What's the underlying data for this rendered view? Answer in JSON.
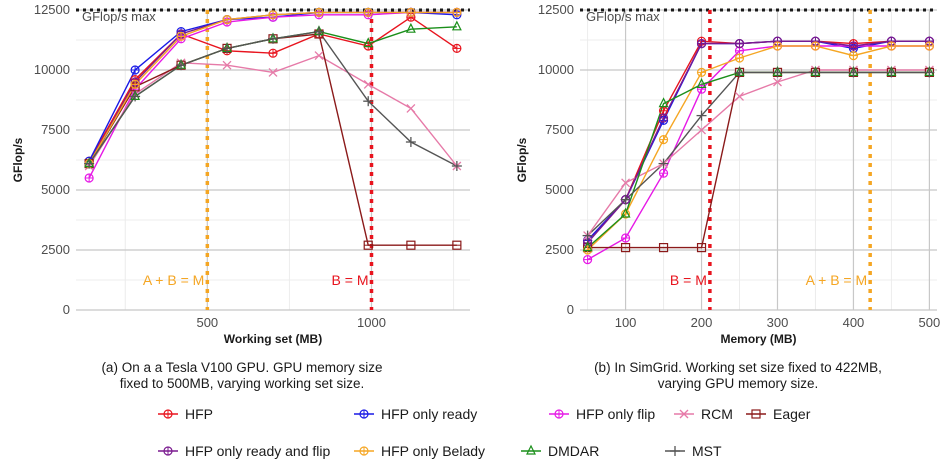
{
  "chart_data": [
    {
      "type": "line",
      "xlabel": "Working set (MB)",
      "ylabel": "GFlop/s",
      "xlim": [
        100,
        1300
      ],
      "ylim": [
        0,
        12500
      ],
      "xticks": [
        500,
        1000
      ],
      "yticks": [
        0,
        2500,
        5000,
        7500,
        10000,
        12500
      ],
      "grid": true,
      "max_line": {
        "y": 12500,
        "label": "GFlop/s max"
      },
      "vlines": [
        {
          "x": 500,
          "label": "A + B = M",
          "color": "#f5a623"
        },
        {
          "x": 1000,
          "label": "B = M",
          "color": "#e8141e"
        }
      ],
      "caption": "(a) On a a Tesla V100 GPU. GPU memory size fixed to 500MB, varying working set size.",
      "x": [
        140,
        280,
        420,
        560,
        700,
        840,
        990,
        1120,
        1260
      ],
      "series": [
        {
          "name": "HFP",
          "values": [
            6200,
            9600,
            11500,
            10800,
            10700,
            11500,
            11000,
            12200,
            10900
          ]
        },
        {
          "name": "HFP only ready",
          "values": [
            6200,
            10000,
            11600,
            12100,
            12200,
            12400,
            12400,
            12400,
            12300
          ]
        },
        {
          "name": "HFP only flip",
          "values": [
            5500,
            9200,
            11300,
            12000,
            12200,
            12300,
            12300,
            12400,
            12400
          ]
        },
        {
          "name": "RCM",
          "values": [
            6000,
            9000,
            10300,
            10200,
            9900,
            10600,
            9400,
            8400,
            6000
          ]
        },
        {
          "name": "Eager",
          "values": [
            6100,
            9300,
            10200,
            10900,
            11300,
            11500,
            2700,
            2700,
            2700
          ]
        },
        {
          "name": "HFP only ready and flip",
          "values": [
            6100,
            9500,
            11500,
            12100,
            12300,
            12400,
            12400,
            12400,
            12400
          ]
        },
        {
          "name": "HFP only Belady",
          "values": [
            6100,
            9400,
            11400,
            12100,
            12300,
            12400,
            12400,
            12400,
            12400
          ]
        },
        {
          "name": "DMDAR",
          "values": [
            6100,
            8900,
            10200,
            10900,
            11300,
            11600,
            11100,
            11700,
            11800
          ]
        },
        {
          "name": "MST",
          "values": [
            6100,
            8900,
            10200,
            10900,
            11300,
            11600,
            8700,
            7000,
            6000
          ]
        }
      ]
    },
    {
      "type": "line",
      "xlabel": "Memory (MB)",
      "ylabel": "GFlop/s",
      "xlim": [
        40,
        510
      ],
      "ylim": [
        0,
        12500
      ],
      "xticks": [
        100,
        200,
        300,
        400,
        500
      ],
      "yticks": [
        0,
        2500,
        5000,
        7500,
        10000,
        12500
      ],
      "grid": true,
      "max_line": {
        "y": 12500,
        "label": "GFlop/s max"
      },
      "vlines": [
        {
          "x": 211,
          "label": "B = M",
          "color": "#e8141e"
        },
        {
          "x": 422,
          "label": "A + B = M",
          "color": "#f5a623"
        }
      ],
      "caption": "(b) In SimGrid. Working set size fixed to 422MB, varying GPU memory size.",
      "x": [
        50,
        100,
        150,
        200,
        250,
        300,
        350,
        400,
        450,
        500
      ],
      "series": [
        {
          "name": "HFP",
          "values": [
            2900,
            4600,
            8300,
            11200,
            11100,
            11200,
            11200,
            11100,
            11200,
            11200
          ]
        },
        {
          "name": "HFP only ready",
          "values": [
            2900,
            4600,
            7900,
            11100,
            11100,
            11200,
            11200,
            10900,
            11200,
            11200
          ]
        },
        {
          "name": "HFP only flip",
          "values": [
            2100,
            3000,
            5700,
            9200,
            10800,
            11000,
            11000,
            11000,
            11000,
            11000
          ]
        },
        {
          "name": "RCM",
          "values": [
            3100,
            5300,
            6100,
            7500,
            8900,
            9500,
            10000,
            10000,
            10000,
            10000
          ]
        },
        {
          "name": "Eager",
          "values": [
            2600,
            2600,
            2600,
            2600,
            9900,
            9900,
            9900,
            9900,
            9900,
            9900
          ]
        },
        {
          "name": "HFP only ready and flip",
          "values": [
            2800,
            4600,
            8000,
            11100,
            11100,
            11200,
            11200,
            11000,
            11200,
            11200
          ]
        },
        {
          "name": "HFP only Belady",
          "values": [
            2500,
            4000,
            7100,
            9900,
            10500,
            11000,
            11000,
            10600,
            11000,
            11000
          ]
        },
        {
          "name": "DMDAR",
          "values": [
            2600,
            4000,
            8600,
            9400,
            9900,
            9900,
            9900,
            9900,
            9900,
            9900
          ]
        },
        {
          "name": "MST",
          "values": [
            3100,
            4600,
            6100,
            8100,
            9900,
            9900,
            9900,
            9900,
            9900,
            9900
          ]
        }
      ]
    }
  ],
  "legend": [
    {
      "name": "HFP",
      "color": "#e8141e",
      "marker": "circle-plus"
    },
    {
      "name": "HFP only ready",
      "color": "#1a1ae6",
      "marker": "circle-plus"
    },
    {
      "name": "HFP only flip",
      "color": "#e619e6",
      "marker": "circle-plus"
    },
    {
      "name": "RCM",
      "color": "#e67aa8",
      "marker": "x"
    },
    {
      "name": "Eager",
      "color": "#8b1a1a",
      "marker": "square-minus"
    },
    {
      "name": "HFP only ready and flip",
      "color": "#7a1a8f",
      "marker": "circle-plus"
    },
    {
      "name": "HFP only Belady",
      "color": "#f5a623",
      "marker": "circle-plus"
    },
    {
      "name": "DMDAR",
      "color": "#1a8f1a",
      "marker": "triangle"
    },
    {
      "name": "MST",
      "color": "#555555",
      "marker": "plus"
    }
  ]
}
